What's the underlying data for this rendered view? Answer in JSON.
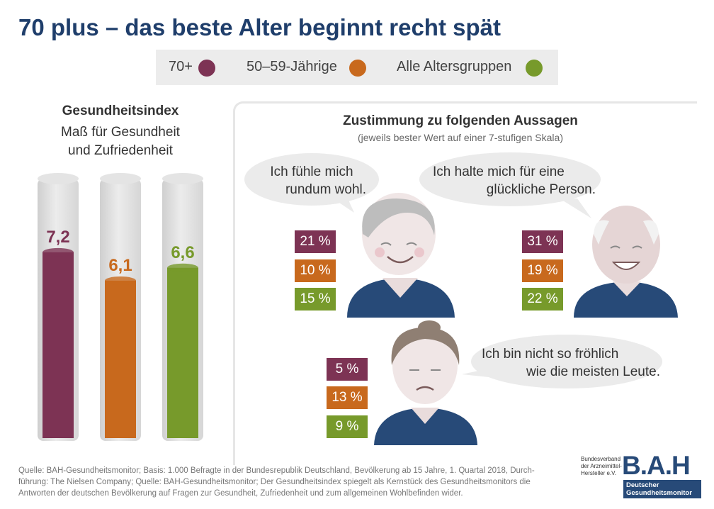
{
  "title": "70 plus – das beste Alter beginnt recht spät",
  "legend": [
    {
      "label": "70+",
      "color": "#7d3354"
    },
    {
      "label": "50–59-Jährige",
      "color": "#c8691d"
    },
    {
      "label": "Alle Altersgruppen",
      "color": "#779a2b"
    }
  ],
  "chart_data": [
    {
      "type": "bar",
      "title": "Gesundheitsindex",
      "subtitle_line1": "Maß für Gesundheit",
      "subtitle_line2": "und Zufriedenheit",
      "categories": [
        "70+",
        "50–59-Jährige",
        "Alle Altersgruppen"
      ],
      "values": [
        7.2,
        6.1,
        6.6
      ],
      "value_labels": [
        "7,2",
        "6,1",
        "6,6"
      ],
      "colors": [
        "#7d3354",
        "#c8691d",
        "#779a2b"
      ],
      "ylim": [
        0,
        10
      ]
    },
    {
      "type": "table",
      "title": "Zustimmung zu folgenden Aussagen",
      "subtitle": "(jeweils bester Wert auf einer 7-stufigen Skala)",
      "statements": [
        {
          "line1": "Ich fühle mich",
          "line2": "rundum wohl.",
          "values": [
            "21 %",
            "10 %",
            "15 %"
          ]
        },
        {
          "line1": "Ich halte mich für eine",
          "line2": "glückliche Person.",
          "values": [
            "31 %",
            "19 %",
            "22 %"
          ]
        },
        {
          "line1": "Ich bin nicht so fröhlich",
          "line2": "wie die meisten Leute.",
          "values": [
            "5 %",
            "13 %",
            "9 %"
          ]
        }
      ]
    }
  ],
  "source": {
    "line1": "Quelle: BAH-Gesundheitsmonitor; Basis: 1.000 Befragte in der Bundesrepublik Deutschland, Bevölkerung ab 15 Jahre, 1. Quartal 2018, Durch-",
    "line2": "führung: The Nielsen Company; Quelle: BAH-Gesundheitsmonitor; Der Gesundheitsindex spiegelt als Kernstück des Gesundheitsmonitors die",
    "line3": "Antworten der deutschen Bevölkerung auf Fragen zur Gesundheit, Zufriedenheit und zum allgemeinen Wohlbefinden wider."
  },
  "logo": {
    "small1": "Bundesverband",
    "small2": "der Arzneimittel-",
    "small3": "Hersteller e.V.",
    "big": "B.A.H",
    "tag1": "Deutscher",
    "tag2": "Gesundheitsmonitor"
  }
}
